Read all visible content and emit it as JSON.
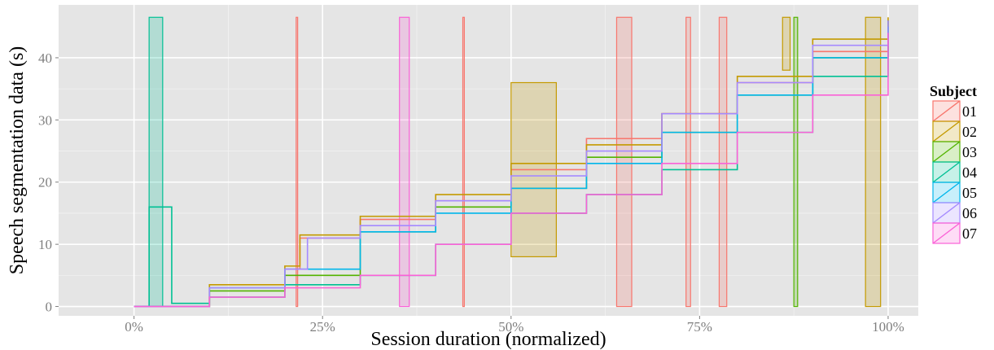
{
  "chart_data": {
    "type": "line",
    "title": "",
    "xlabel": "Session duration (normalized)",
    "ylabel": "Speech segmentation data (s)",
    "xlim": [
      -0.1,
      1.04
    ],
    "ylim": [
      -1.5,
      48.5
    ],
    "x_ticks": [
      0,
      0.25,
      0.5,
      0.75,
      1.0
    ],
    "x_tick_labels": [
      "0%",
      "25%",
      "50%",
      "75%",
      "100%"
    ],
    "y_ticks": [
      0,
      10,
      20,
      30,
      40
    ],
    "y_tick_labels": [
      "0",
      "10",
      "20",
      "30",
      "40"
    ],
    "grid": true,
    "legend": {
      "title": "Subject",
      "position": "right"
    },
    "series": [
      {
        "name": "01",
        "color": "#F8766D",
        "x": [
          0,
          0.1,
          0.2,
          0.22,
          0.3,
          0.4,
          0.5,
          0.6,
          0.7,
          0.8,
          0.9,
          1.0
        ],
        "y": [
          0,
          3,
          6,
          11,
          14,
          17,
          22,
          27,
          31,
          36,
          41,
          46
        ],
        "boxes": [
          [
            0.64,
            0.66,
            0,
            46.5
          ],
          [
            0.732,
            0.738,
            0,
            46.5
          ],
          [
            0.776,
            0.786,
            0,
            46.5
          ],
          [
            0.215,
            0.217,
            0,
            46.5
          ],
          [
            0.436,
            0.438,
            0,
            46.5
          ]
        ]
      },
      {
        "name": "02",
        "color": "#C49A00",
        "x": [
          0,
          0.1,
          0.2,
          0.22,
          0.3,
          0.4,
          0.5,
          0.6,
          0.7,
          0.8,
          0.9,
          1.0
        ],
        "y": [
          0,
          3.5,
          6.5,
          11.5,
          14.5,
          18,
          23,
          26,
          31,
          37,
          43,
          46.5
        ],
        "boxes": [
          [
            0.5,
            0.56,
            8,
            36
          ],
          [
            0.97,
            0.99,
            0,
            46.5
          ],
          [
            0.86,
            0.87,
            38,
            46.5
          ]
        ]
      },
      {
        "name": "03",
        "color": "#53B400",
        "x": [
          0,
          0.1,
          0.2,
          0.3,
          0.4,
          0.5,
          0.6,
          0.7,
          0.8,
          0.9,
          1.0
        ],
        "y": [
          0,
          2.5,
          5,
          12,
          16,
          19,
          24,
          28,
          34,
          40,
          46
        ],
        "boxes": [
          [
            0.875,
            0.88,
            0,
            46.5
          ]
        ]
      },
      {
        "name": "04",
        "color": "#00C094",
        "x": [
          0,
          0.02,
          0.05,
          0.1,
          0.2,
          0.3,
          0.4,
          0.5,
          0.6,
          0.7,
          0.8,
          0.9,
          1.0
        ],
        "y": [
          0,
          16,
          0.5,
          1.5,
          3.5,
          5,
          10,
          15,
          18,
          22,
          28,
          37,
          45
        ],
        "boxes": [
          [
            0.02,
            0.038,
            0,
            46.5
          ]
        ]
      },
      {
        "name": "05",
        "color": "#00B6EB",
        "x": [
          0,
          0.1,
          0.2,
          0.3,
          0.4,
          0.5,
          0.6,
          0.7,
          0.8,
          0.9,
          1.0
        ],
        "y": [
          0,
          3,
          6,
          12,
          15,
          19,
          23,
          28,
          34,
          40,
          45
        ],
        "boxes": []
      },
      {
        "name": "06",
        "color": "#A58AFF",
        "x": [
          0,
          0.1,
          0.2,
          0.23,
          0.3,
          0.4,
          0.5,
          0.6,
          0.7,
          0.8,
          0.9,
          1.0
        ],
        "y": [
          0,
          3,
          6,
          11,
          13,
          17,
          21,
          25,
          31,
          36,
          42,
          46
        ],
        "boxes": []
      },
      {
        "name": "07",
        "color": "#FB61D7",
        "x": [
          0,
          0.1,
          0.2,
          0.3,
          0.4,
          0.5,
          0.6,
          0.7,
          0.8,
          0.9,
          1.0
        ],
        "y": [
          0,
          1.5,
          3,
          5,
          10,
          15,
          18,
          23,
          28,
          34,
          44
        ],
        "boxes": [
          [
            0.352,
            0.365,
            0,
            46.5
          ]
        ]
      }
    ]
  }
}
